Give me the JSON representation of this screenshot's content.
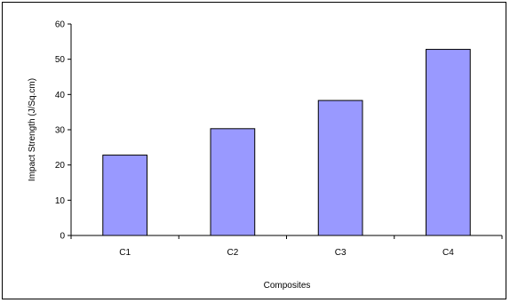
{
  "chart_data": {
    "type": "bar",
    "categories": [
      "C1",
      "C2",
      "C3",
      "C4"
    ],
    "values": [
      22.8,
      30.3,
      38.3,
      52.8
    ],
    "xlabel": "Composites",
    "ylabel": "Impact Strength (J/Sq.cm)",
    "ylim": [
      0,
      60
    ],
    "yticks": [
      0,
      10,
      20,
      30,
      40,
      50,
      60
    ],
    "grid": false,
    "legend": "none",
    "bar_color": "#9999ff",
    "bar_edge_color": "#000000"
  }
}
